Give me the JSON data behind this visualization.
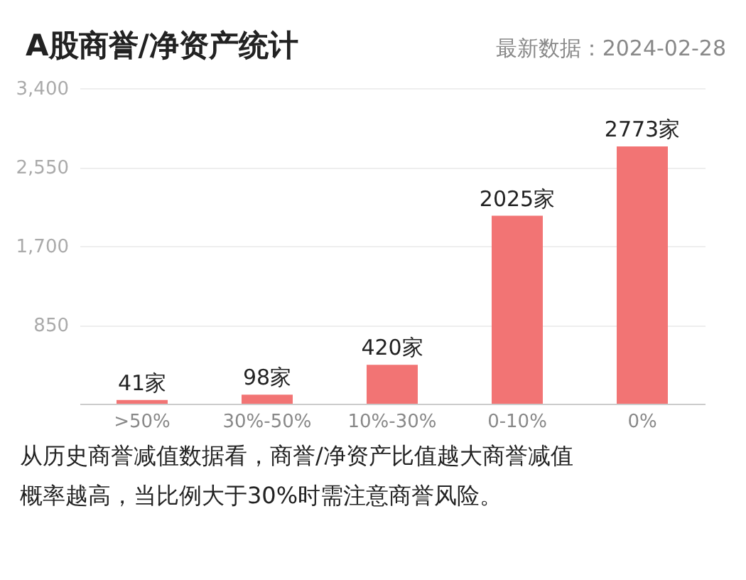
{
  "chart_data": {
    "type": "bar",
    "title": "A股商誉/净资产统计",
    "subtitle": "最新数据：2024-02-28",
    "categories": [
      ">50%",
      "30%-50%",
      "10%-30%",
      "0-10%",
      "0%"
    ],
    "values": [
      41,
      98,
      420,
      2025,
      2773
    ],
    "value_labels": [
      "41家",
      "98家",
      "420家",
      "2025家",
      "2773家"
    ],
    "color": "#f27474",
    "ylim": [
      0,
      3400
    ],
    "yticks": [
      850,
      {
        "value": 1700,
        "label": "1,700"
      },
      {
        "value": 2550,
        "label": "2,550"
      },
      {
        "value": 3400,
        "label": "3,400"
      }
    ],
    "grid": "y",
    "annotations": [
      "从历史商誉减值数据看，商誉/净资产比值越大商誉减值概率越高，当比例大于30%时需注意商誉风险。"
    ]
  }
}
